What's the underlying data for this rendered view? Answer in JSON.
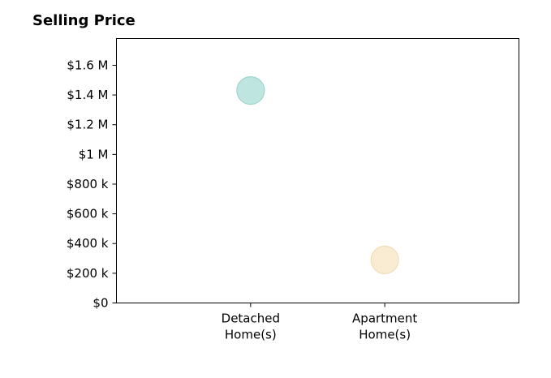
{
  "chart_data": {
    "type": "scatter",
    "title": "Selling Price",
    "xlabel": "",
    "ylabel": "",
    "categories": [
      "Detached Home(s)",
      "Apartment Home(s)"
    ],
    "category_lines": [
      [
        "Detached",
        "Home(s)"
      ],
      [
        "Apartment",
        "Home(s)"
      ]
    ],
    "values": [
      1430000,
      290000
    ],
    "ylim": [
      0,
      1780000
    ],
    "xlim": [
      -1,
      2
    ],
    "y_ticks": [
      0,
      200000,
      400000,
      600000,
      800000,
      1000000,
      1200000,
      1400000,
      1600000
    ],
    "y_tick_labels": [
      "$0",
      "$200 k",
      "$400 k",
      "$600 k",
      "$800 k",
      "$1 M",
      "$1.2 M",
      "$1.4 M",
      "$1.6 M"
    ],
    "point_colors": [
      "#a8dcd5",
      "#f8e5c3"
    ],
    "point_edge_colors": [
      "#9fd4cd",
      "#f2ddb8"
    ],
    "grid": false,
    "legend": "none"
  }
}
